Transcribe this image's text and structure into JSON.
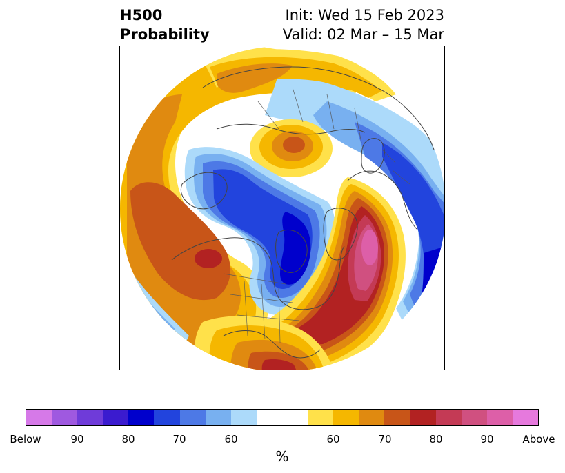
{
  "header": {
    "title_line1": "H500",
    "title_line2": "Probability",
    "init": "Init: Wed 15 Feb 2023",
    "valid": "Valid: 02 Mar – 15 Mar"
  },
  "legend": {
    "colors": [
      "#d679e8",
      "#9f59e0",
      "#6f3bd9",
      "#3b1bcf",
      "#0000cc",
      "#2244dd",
      "#4d79e6",
      "#78b0f0",
      "#acdafa",
      "#ffffff",
      "#ffffff",
      "#ffe14a",
      "#f5b700",
      "#e08a10",
      "#c85518",
      "#b22222",
      "#c43a55",
      "#d05080",
      "#dd5fa8",
      "#e679dd"
    ],
    "labels": [
      "Below",
      "90",
      "80",
      "70",
      "60",
      "60",
      "70",
      "80",
      "90",
      "Above"
    ],
    "unit": "%"
  },
  "map": {
    "projection": "north-polar-stereographic",
    "palette": {
      "land": "#444444",
      "pos60": "#ffe14a",
      "pos65": "#f5b700",
      "pos70": "#e08a10",
      "pos75": "#c85518",
      "pos80": "#b22222",
      "pos85": "#c43a55",
      "pos90": "#d05080",
      "pos95": "#dd5fa8",
      "neg60": "#acdafa",
      "neg65": "#78b0f0",
      "neg70": "#4d79e6",
      "neg75": "#2244dd",
      "neg80": "#0000cc"
    }
  }
}
